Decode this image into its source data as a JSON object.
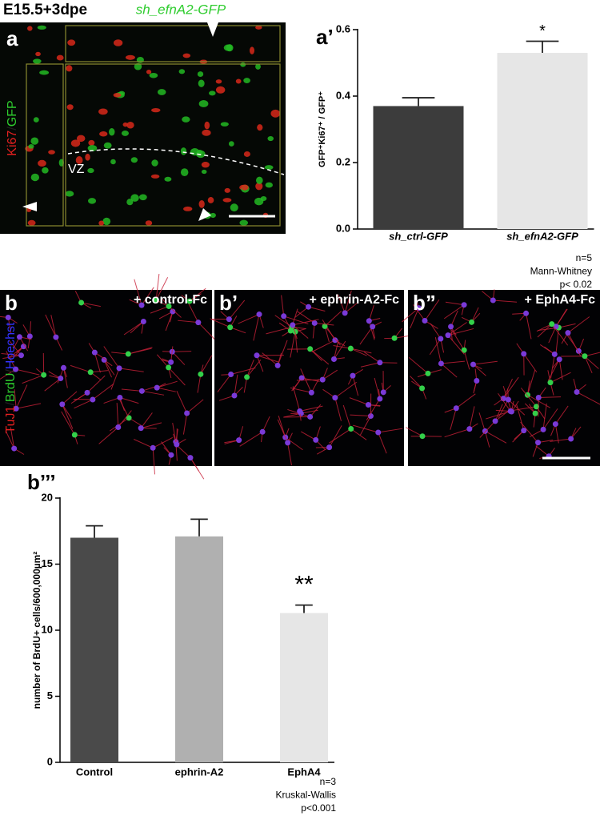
{
  "panel_a": {
    "title": "E15.5+3dpe",
    "construct": "sh_efnA2-GFP",
    "label": "a",
    "stain": [
      "Ki67",
      "/",
      "GFP"
    ],
    "region": "VZ"
  },
  "panel_b": {
    "stain": [
      "TuJ1",
      "/",
      "BrdU",
      "/",
      "Hoechst"
    ],
    "images": [
      {
        "label": "b",
        "condition": "+ control-Fc"
      },
      {
        "label": "b’",
        "condition": "+ ephrin-A2-Fc"
      },
      {
        "label": "b”",
        "condition": "+ EphA4-Fc"
      }
    ]
  },
  "chart_data": [
    {
      "type": "bar",
      "label": "a’",
      "y_label": "GFP⁺Ki67⁺ / GFP⁺",
      "categories": [
        "sh_ctrl-GFP",
        "sh_efnA2-GFP"
      ],
      "values": [
        0.37,
        0.53
      ],
      "errors": [
        0.025,
        0.035
      ],
      "colors": [
        "#3c3c3c",
        "#e6e6e6"
      ],
      "annotations": [
        null,
        "*"
      ],
      "ylim": [
        0,
        0.6
      ],
      "yticks": [
        {
          "value": 0,
          "label": "0.0"
        },
        0.2,
        0.4,
        0.6
      ],
      "notes": [
        "n=5",
        "Mann-Whitney",
        "p< 0.02"
      ]
    },
    {
      "type": "bar",
      "label": "b’’’",
      "y_label": "number of BrdU+ cells/600,000µm²",
      "categories": [
        "Control",
        "ephrin-A2",
        "EphA4"
      ],
      "values": [
        17.0,
        17.1,
        11.3
      ],
      "errors": [
        0.9,
        1.3,
        0.6
      ],
      "colors": [
        "#4a4a4a",
        "#b0b0b0",
        "#e6e6e6"
      ],
      "annotations": [
        null,
        null,
        "**"
      ],
      "ylim": [
        0,
        20
      ],
      "yticks": [
        0,
        5,
        10,
        15,
        20
      ],
      "notes": [
        "n=3",
        "Kruskal-Wallis",
        "p<0.001"
      ]
    }
  ]
}
